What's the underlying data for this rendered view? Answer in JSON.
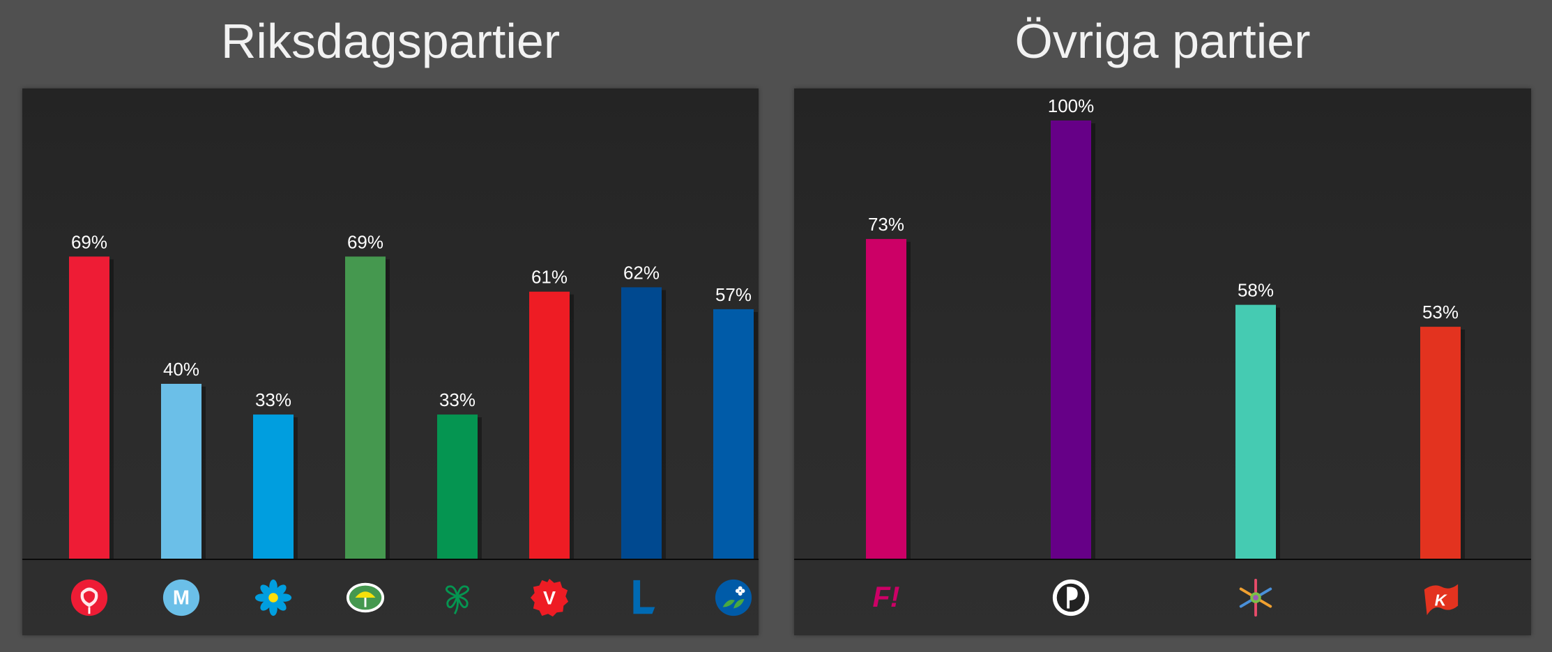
{
  "chart_data": [
    {
      "type": "bar",
      "title": "Riksdagspartier",
      "ylim": [
        0,
        100
      ],
      "grid": false,
      "categories": [
        "S",
        "M",
        "SD",
        "MP",
        "C",
        "V",
        "L",
        "KD"
      ],
      "values": [
        69,
        40,
        33,
        69,
        33,
        61,
        62,
        57
      ],
      "value_labels": [
        "69%",
        "40%",
        "33%",
        "69%",
        "33%",
        "61%",
        "62%",
        "57%"
      ],
      "colors": [
        "#ee1c35",
        "#6bbfe8",
        "#009edf",
        "#45984f",
        "#059551",
        "#ee1c24",
        "#004990",
        "#005ba8"
      ],
      "icons": [
        "social-democrats-rose-icon",
        "moderates-m-icon",
        "sweden-democrats-flower-icon",
        "green-party-dandelion-icon",
        "centre-party-clover-icon",
        "left-party-v-icon",
        "liberals-l-icon",
        "christian-democrats-flower-icon"
      ]
    },
    {
      "type": "bar",
      "title": "Övriga partier",
      "ylim": [
        0,
        100
      ],
      "grid": false,
      "categories": [
        "F!",
        "PP",
        "MED",
        "K"
      ],
      "values": [
        73,
        100,
        58,
        53
      ],
      "value_labels": [
        "73%",
        "100%",
        "58%",
        "53%"
      ],
      "colors": [
        "#cc0066",
        "#660087",
        "#45cbb2",
        "#e3331f"
      ],
      "icons": [
        "feminist-initiative-f-icon",
        "pirate-party-sail-icon",
        "snowflake-party-icon",
        "communist-k-flag-icon"
      ]
    }
  ]
}
